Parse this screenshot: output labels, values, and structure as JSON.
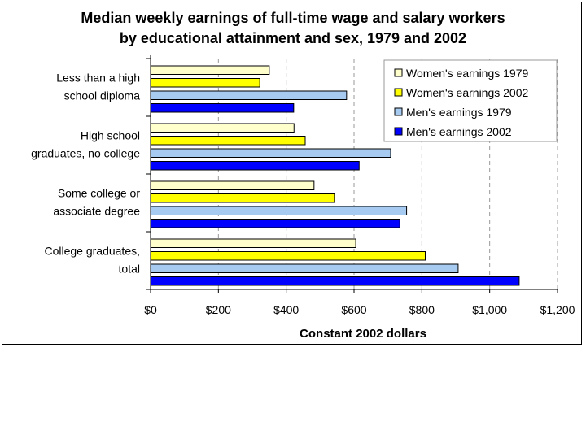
{
  "chart_data": {
    "type": "bar",
    "orientation": "horizontal",
    "title": "Median weekly earnings of full-time wage and salary workers",
    "subtitle": "by educational attainment and sex, 1979 and 2002",
    "xlabel": "Constant 2002 dollars",
    "ylabel": "",
    "xlim": [
      0,
      1200
    ],
    "x_ticks": [
      "$0",
      "$200",
      "$400",
      "$600",
      "$800",
      "$1,000",
      "$1,200"
    ],
    "grid": true,
    "legend_position": "top-right",
    "categories": [
      [
        "Less than a high",
        "school diploma"
      ],
      [
        "High school",
        "graduates, no college"
      ],
      [
        "Some college or",
        "associate degree"
      ],
      [
        "College graduates,",
        "total"
      ]
    ],
    "series": [
      {
        "name": "Women's earnings 1979",
        "color": "#ffffcc",
        "values": [
          350,
          423,
          482,
          605
        ]
      },
      {
        "name": "Women's earnings 2002",
        "color": "#ffff00",
        "values": [
          322,
          456,
          542,
          810
        ]
      },
      {
        "name": "Men's earnings 1979",
        "color": "#a6caf0",
        "values": [
          578,
          708,
          755,
          907
        ]
      },
      {
        "name": "Men's earnings 2002",
        "color": "#0000ff",
        "values": [
          422,
          615,
          735,
          1087
        ]
      }
    ]
  }
}
